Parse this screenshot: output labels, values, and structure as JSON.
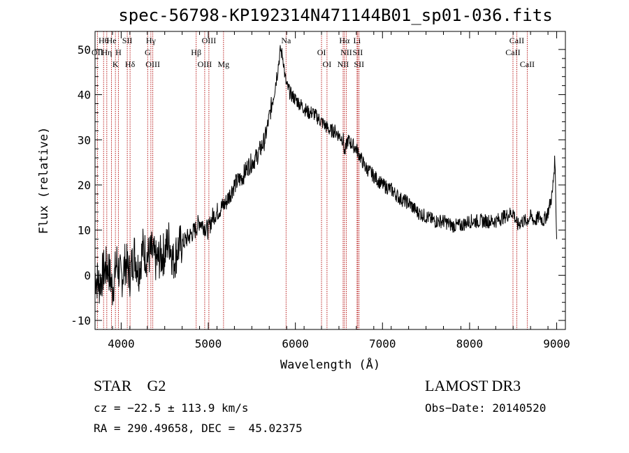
{
  "chart_data": {
    "type": "line",
    "title": "spec-56798-KP192314N471144B01_sp01-036.fits",
    "xlabel": "Wavelength (Å)",
    "ylabel": "Flux (relative)",
    "xlim": [
      3700,
      9100
    ],
    "ylim": [
      -12,
      54
    ],
    "xticks": [
      4000,
      5000,
      6000,
      7000,
      8000,
      9000
    ],
    "yticks": [
      -10,
      0,
      10,
      20,
      30,
      40,
      50
    ],
    "series": [
      {
        "name": "flux",
        "x": [
          3700,
          3750,
          3800,
          3850,
          3900,
          3950,
          4000,
          4050,
          4100,
          4150,
          4200,
          4250,
          4300,
          4350,
          4400,
          4450,
          4500,
          4550,
          4600,
          4650,
          4700,
          4750,
          4800,
          4850,
          4900,
          4950,
          5000,
          5050,
          5100,
          5150,
          5200,
          5250,
          5300,
          5350,
          5400,
          5450,
          5500,
          5550,
          5600,
          5650,
          5700,
          5750,
          5800,
          5830,
          5860,
          5880,
          5900,
          5950,
          6000,
          6050,
          6100,
          6150,
          6200,
          6250,
          6300,
          6350,
          6400,
          6450,
          6500,
          6550,
          6563,
          6580,
          6600,
          6650,
          6700,
          6750,
          6800,
          6850,
          6900,
          6950,
          7000,
          7100,
          7200,
          7300,
          7400,
          7500,
          7600,
          7700,
          7800,
          7900,
          8000,
          8100,
          8200,
          8300,
          8400,
          8500,
          8550,
          8600,
          8650,
          8700,
          8750,
          8800,
          8850,
          8900,
          8950,
          8980,
          9000
        ],
        "y": [
          0,
          -2,
          1,
          2,
          -3,
          3,
          -1,
          3,
          0,
          5,
          1,
          6,
          4,
          5,
          3,
          4,
          5,
          8,
          3,
          6,
          7,
          8,
          9,
          10,
          12,
          11,
          10,
          13,
          14,
          15,
          16,
          18,
          20,
          21,
          22,
          24,
          25,
          26,
          28,
          30,
          35,
          40,
          46,
          50,
          48,
          44,
          42,
          40,
          39,
          38,
          37,
          36,
          36,
          35,
          34,
          33,
          32,
          32,
          31,
          30,
          27,
          28,
          30,
          29,
          28,
          26,
          24,
          23,
          22,
          21,
          20,
          19,
          17,
          16,
          14,
          13,
          12,
          12,
          11,
          11,
          12,
          12,
          12,
          12,
          13,
          14,
          11,
          12,
          12,
          13,
          12,
          13,
          12,
          14,
          18,
          26,
          8
        ]
      }
    ],
    "spectral_lines": [
      {
        "label": "Hθ",
        "wavelength": 3798
      },
      {
        "label": "OII",
        "wavelength": 3727
      },
      {
        "label": "K",
        "wavelength": 3934
      },
      {
        "label": "He",
        "wavelength": 3889
      },
      {
        "label": "Hη",
        "wavelength": 3835
      },
      {
        "label": "Hδ",
        "wavelength": 4102
      },
      {
        "label": "SII",
        "wavelength": 4070
      },
      {
        "label": "H",
        "wavelength": 3968
      },
      {
        "label": "OIII",
        "wavelength": 4363
      },
      {
        "label": "Hγ",
        "wavelength": 4341
      },
      {
        "label": "G",
        "wavelength": 4304
      },
      {
        "label": "OIII",
        "wavelength": 4959
      },
      {
        "label": "OIII",
        "wavelength": 5007
      },
      {
        "label": "Hβ",
        "wavelength": 4861
      },
      {
        "label": "Mg",
        "wavelength": 5175
      },
      {
        "label": "Na",
        "wavelength": 5893
      },
      {
        "label": "OI",
        "wavelength": 6300
      },
      {
        "label": "OI",
        "wavelength": 6363
      },
      {
        "label": "Hα",
        "wavelength": 6563
      },
      {
        "label": "SII",
        "wavelength": 6716
      },
      {
        "label": "NII",
        "wavelength": 6548
      },
      {
        "label": "Li",
        "wavelength": 6708
      },
      {
        "label": "NII",
        "wavelength": 6584
      },
      {
        "label": "SII",
        "wavelength": 6731
      },
      {
        "label": "CaII",
        "wavelength": 8542
      },
      {
        "label": "CaII",
        "wavelength": 8498
      },
      {
        "label": "CaII",
        "wavelength": 8662
      }
    ]
  },
  "info": {
    "object": "STAR    G2",
    "survey": "LAMOST DR3",
    "cz": "cz = −22.5 ± 113.9 km/s",
    "obs_date": "Obs−Date: 20140520",
    "radec": "RA = 290.49658, DEC =  45.02375"
  }
}
